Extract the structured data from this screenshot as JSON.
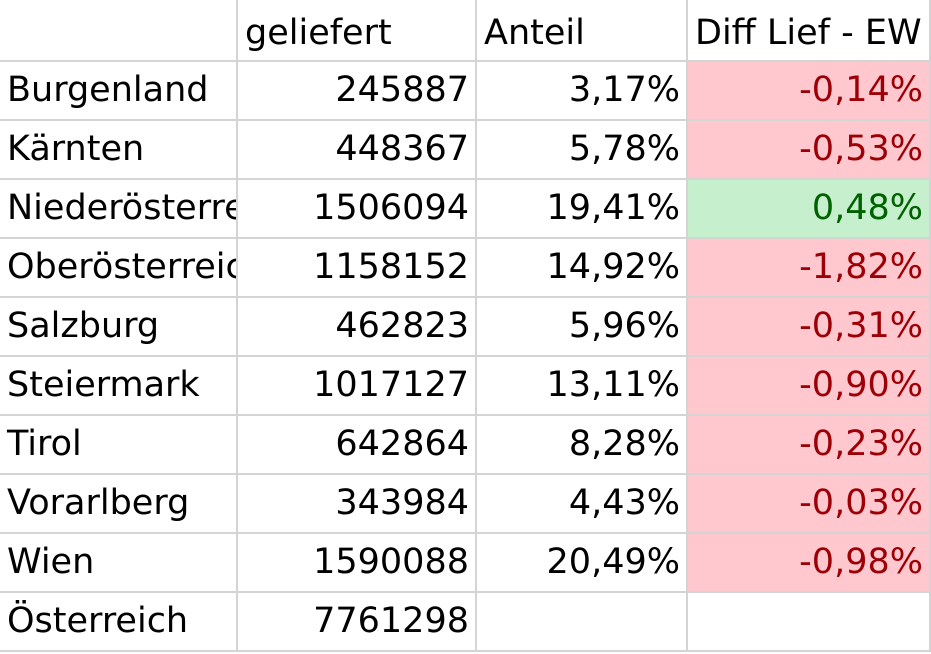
{
  "header": {
    "col_a": "",
    "col_b": "geliefert",
    "col_c": "Anteil",
    "col_d": "Diff Lief - EW"
  },
  "rows": [
    {
      "region": "Burgenland",
      "geliefert": "245887",
      "anteil": "3,17%",
      "diff": "-0,14%",
      "diff_status": "negative"
    },
    {
      "region": "Kärnten",
      "geliefert": "448367",
      "anteil": "5,78%",
      "diff": "-0,53%",
      "diff_status": "negative"
    },
    {
      "region": "Niederösterreich",
      "geliefert": "1506094",
      "anteil": "19,41%",
      "diff": "0,48%",
      "diff_status": "positive"
    },
    {
      "region": "Oberösterreich",
      "geliefert": "1158152",
      "anteil": "14,92%",
      "diff": "-1,82%",
      "diff_status": "negative"
    },
    {
      "region": "Salzburg",
      "geliefert": "462823",
      "anteil": "5,96%",
      "diff": "-0,31%",
      "diff_status": "negative"
    },
    {
      "region": "Steiermark",
      "geliefert": "1017127",
      "anteil": "13,11%",
      "diff": "-0,90%",
      "diff_status": "negative"
    },
    {
      "region": "Tirol",
      "geliefert": "642864",
      "anteil": "8,28%",
      "diff": "-0,23%",
      "diff_status": "negative"
    },
    {
      "region": "Vorarlberg",
      "geliefert": "343984",
      "anteil": "4,43%",
      "diff": "-0,03%",
      "diff_status": "negative"
    },
    {
      "region": "Wien",
      "geliefert": "1590088",
      "anteil": "20,49%",
      "diff": "-0,98%",
      "diff_status": "negative"
    }
  ],
  "total": {
    "region": "Österreich",
    "geliefert": "7761298",
    "anteil": "",
    "diff": ""
  },
  "colors": {
    "negative_fill": "#ffc7ce",
    "negative_text": "#9c0006",
    "positive_fill": "#c6efce",
    "positive_text": "#006100",
    "gridline": "#d4d4d4"
  }
}
